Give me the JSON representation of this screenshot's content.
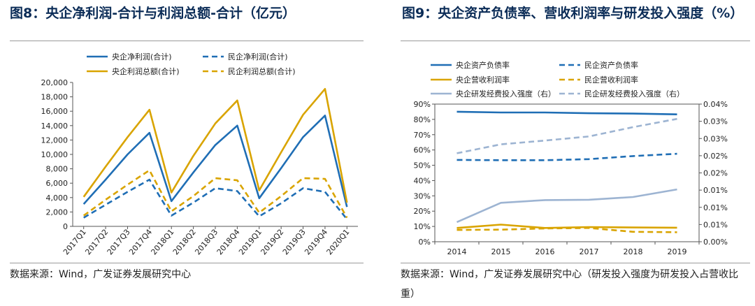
{
  "titles": {
    "left": "图8：央企净利润-合计与利润总额-合计（亿元）",
    "right": "图9：央企资产负债率、营收利润率与研发投入强度（%）"
  },
  "sources": {
    "left": "数据来源：Wind，广发证券发展研究中心",
    "right": "数据来源：Wind，广发证券发展研究中心（研发投入强度为研发投入占营收比重）"
  },
  "colors": {
    "blue": "#1f6eb5",
    "gold": "#d9a400",
    "lightblue": "#9db4d2"
  },
  "chart_data": [
    {
      "type": "line",
      "x": [
        "2017Q1",
        "2017Q2",
        "2017Q3",
        "2017Q4",
        "2018Q1",
        "2018Q2",
        "2018Q3",
        "2018Q4",
        "2019Q1",
        "2019Q2",
        "2019Q3",
        "2019Q4",
        "2020Q1"
      ],
      "ylim": [
        0,
        20000
      ],
      "yticks": [
        0,
        2000,
        4000,
        6000,
        8000,
        10000,
        12000,
        14000,
        16000,
        18000,
        20000
      ],
      "ytick_labels": [
        "0",
        "2,000",
        "4,000",
        "6,000",
        "8,000",
        "10,000",
        "12,000",
        "14,000",
        "16,000",
        "18,000",
        "20,000"
      ],
      "series": [
        {
          "name": "央企净利润(合计)",
          "color": "#1f6eb5",
          "dash": false,
          "values": [
            3100,
            6500,
            10000,
            13000,
            3500,
            7500,
            11300,
            14000,
            3900,
            8100,
            12400,
            15400,
            2700
          ]
        },
        {
          "name": "民企净利润(合计)",
          "color": "#1f6eb5",
          "dash": true,
          "values": [
            1200,
            3000,
            4800,
            6500,
            1500,
            3300,
            5300,
            4900,
            1400,
            3200,
            5300,
            4800,
            1000
          ]
        },
        {
          "name": "央企利润总额(合计)",
          "color": "#d9a400",
          "dash": false,
          "values": [
            4100,
            8300,
            12400,
            16200,
            4700,
            9800,
            14300,
            17500,
            5000,
            10300,
            15500,
            19100,
            3300
          ]
        },
        {
          "name": "民企利润总额(合计)",
          "color": "#d9a400",
          "dash": true,
          "values": [
            1500,
            3700,
            5800,
            7800,
            2100,
            4200,
            6700,
            6400,
            1900,
            4200,
            6700,
            6600,
            1200
          ]
        }
      ]
    },
    {
      "type": "line",
      "x": [
        "2014",
        "2015",
        "2016",
        "2017",
        "2018",
        "2019"
      ],
      "ylim": [
        0,
        90
      ],
      "yticks": [
        0,
        10,
        20,
        30,
        40,
        50,
        60,
        70,
        80,
        90
      ],
      "ytick_labels": [
        "0%",
        "10%",
        "20%",
        "30%",
        "40%",
        "50%",
        "60%",
        "70%",
        "80%",
        "90%"
      ],
      "y2lim": [
        0,
        0.04
      ],
      "y2ticks": [
        0,
        0.005,
        0.01,
        0.015,
        0.02,
        0.025,
        0.03,
        0.035,
        0.04
      ],
      "y2tick_labels": [
        "0.00%",
        "0.01%",
        "0.01%",
        "0.01%",
        "0.02%",
        "0.02%",
        "0.03%",
        "0.03%",
        "0.04%"
      ],
      "series": [
        {
          "name": "央企资产负债率",
          "color": "#1f6eb5",
          "dash": false,
          "axis": "left",
          "values": [
            85,
            84.5,
            84.5,
            84,
            83.8,
            83.3
          ]
        },
        {
          "name": "民企资产负债率",
          "color": "#1f6eb5",
          "dash": true,
          "axis": "left",
          "values": [
            53.5,
            53.3,
            53.3,
            54,
            56,
            57.5
          ]
        },
        {
          "name": "央企营收利润率",
          "color": "#d9a400",
          "dash": false,
          "axis": "left",
          "values": [
            9,
            11.2,
            9,
            9.6,
            9.3,
            9.2
          ]
        },
        {
          "name": "民企营收利润率",
          "color": "#d9a400",
          "dash": true,
          "axis": "left",
          "values": [
            7.7,
            7.9,
            8.7,
            9,
            6.5,
            6.2
          ]
        },
        {
          "name": "央企研发经费投入强度（右）",
          "color": "#9db4d2",
          "dash": false,
          "axis": "right",
          "values": [
            0.0057,
            0.0113,
            0.0121,
            0.0122,
            0.013,
            0.0152
          ]
        },
        {
          "name": "民企研发经费投入强度（右）",
          "color": "#9db4d2",
          "dash": true,
          "axis": "right",
          "values": [
            0.0257,
            0.0283,
            0.0294,
            0.0306,
            0.0333,
            0.0357
          ]
        }
      ]
    }
  ]
}
